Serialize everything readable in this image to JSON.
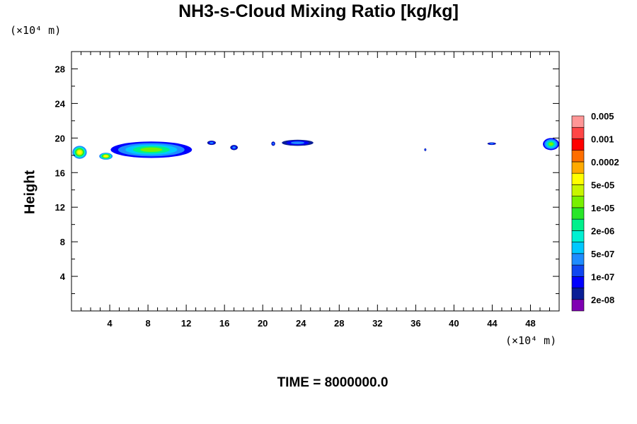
{
  "chart_data": {
    "type": "heatmap",
    "title": "NH3-s-Cloud Mixing Ratio [kg/kg]",
    "ylabel": "Height",
    "xlabel": "",
    "x_unit": "(×10⁴ m)",
    "y_unit": "(×10⁴ m)",
    "xlim": [
      0,
      51
    ],
    "ylim": [
      0,
      30
    ],
    "x_ticks": [
      4,
      8,
      12,
      16,
      20,
      24,
      28,
      32,
      36,
      40,
      44,
      48
    ],
    "y_ticks": [
      4,
      8,
      12,
      16,
      20,
      24,
      28
    ],
    "colorbar": {
      "colors": [
        "#7f00b2",
        "#0a1e96",
        "#0000ff",
        "#0f46f0",
        "#1e8cff",
        "#00c8ff",
        "#00f0d2",
        "#00f08c",
        "#28e628",
        "#78f000",
        "#c8f500",
        "#ffff00",
        "#ffaa00",
        "#ff6e00",
        "#ff0000",
        "#ff4646",
        "#ff9696"
      ],
      "labels": [
        "2e-08",
        "1e-07",
        "5e-07",
        "2e-06",
        "1e-05",
        "5e-05",
        "0.0002",
        "0.001",
        "0.005"
      ]
    },
    "cloud_regions": [
      {
        "x0": 0.1,
        "x1": 1.6,
        "y0": 17.6,
        "y1": 19.1,
        "peak": "yellow"
      },
      {
        "x0": 2.9,
        "x1": 4.3,
        "y0": 17.5,
        "y1": 18.3,
        "peak": "yellow"
      },
      {
        "x0": 4.1,
        "x1": 12.6,
        "y0": 17.7,
        "y1": 19.6,
        "peak": "green"
      },
      {
        "x0": 14.2,
        "x1": 15.1,
        "y0": 19.2,
        "y1": 19.7,
        "peak": "blue"
      },
      {
        "x0": 16.6,
        "x1": 17.4,
        "y0": 18.6,
        "y1": 19.2,
        "peak": "blue"
      },
      {
        "x0": 20.9,
        "x1": 21.3,
        "y0": 19.1,
        "y1": 19.6,
        "peak": "blue"
      },
      {
        "x0": 22.0,
        "x1": 25.3,
        "y0": 19.1,
        "y1": 19.8,
        "peak": "blue"
      },
      {
        "x0": 49.3,
        "x1": 51.0,
        "y0": 18.6,
        "y1": 20.0,
        "peak": "green"
      },
      {
        "x0": 43.5,
        "x1": 44.4,
        "y0": 19.2,
        "y1": 19.5,
        "peak": "blue"
      },
      {
        "x0": 36.9,
        "x1": 37.1,
        "y0": 18.5,
        "y1": 18.8,
        "peak": "blue"
      }
    ]
  },
  "footer": {
    "time_text": "TIME = 8000000.0"
  }
}
